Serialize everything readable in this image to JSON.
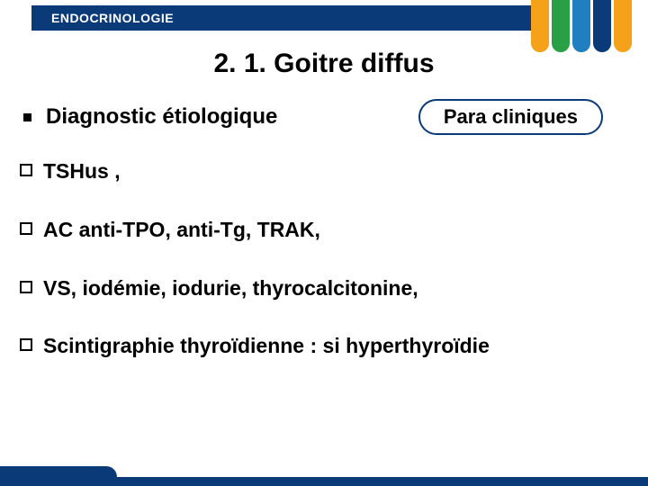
{
  "header": {
    "label": "ENDOCRINOLOGIE",
    "bg_color": "#0b3a78",
    "text_color": "#ffffff"
  },
  "corner_stripes": [
    "#f5a11a",
    "#2aa045",
    "#1f7fc1",
    "#0b3a78",
    "#f5a11a"
  ],
  "title": "2. 1. Goitre diffus",
  "subtitle": "Diagnostic étiologique",
  "pill": {
    "text": "Para cliniques",
    "border_color": "#0b3a78"
  },
  "bullets": [
    "TSHus ,",
    "AC anti-TPO, anti-Tg, TRAK,",
    "VS, iodémie, iodurie, thyrocalcitonine,",
    "Scintigraphie thyroïdienne : si hyperthyroïdie"
  ],
  "footer_color": "#0b3a78"
}
